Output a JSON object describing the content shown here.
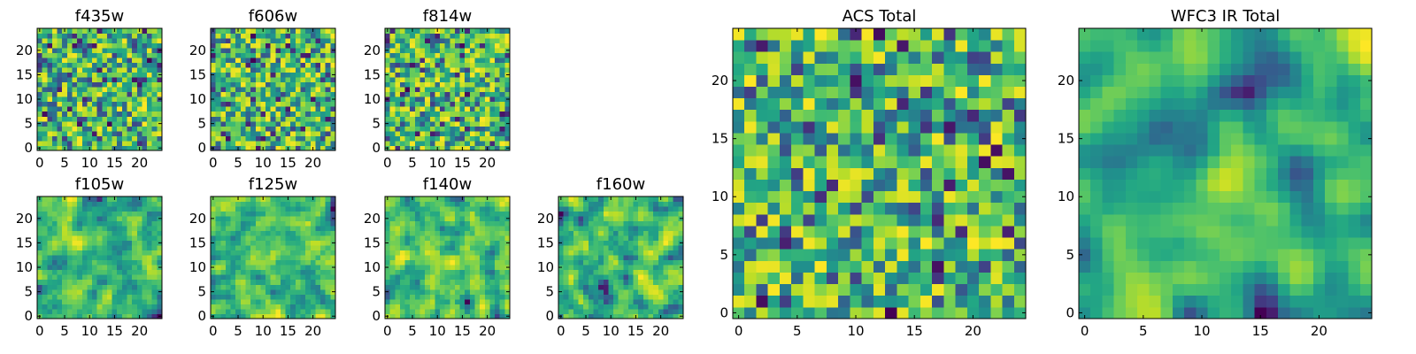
{
  "figure": {
    "description_type": "grid of heatmap panels (images) of 24x24 pixel cutouts",
    "colormap": "viridis"
  },
  "chart_data": [
    {
      "type": "heatmap",
      "title": "f435w",
      "x_ticks": [
        "0",
        "5",
        "10",
        "15",
        "20"
      ],
      "y_ticks": [
        "0",
        "5",
        "10",
        "15",
        "20"
      ],
      "xlim": [
        -0.5,
        24.5
      ],
      "ylim": [
        -0.5,
        24.5
      ],
      "grid_size": 25,
      "seed": 11,
      "smoothness": 0
    },
    {
      "type": "heatmap",
      "title": "f606w",
      "x_ticks": [
        "0",
        "5",
        "10",
        "15",
        "20"
      ],
      "y_ticks": [
        "0",
        "5",
        "10",
        "15",
        "20"
      ],
      "xlim": [
        -0.5,
        24.5
      ],
      "ylim": [
        -0.5,
        24.5
      ],
      "grid_size": 25,
      "seed": 23,
      "smoothness": 0
    },
    {
      "type": "heatmap",
      "title": "f814w",
      "x_ticks": [
        "0",
        "5",
        "10",
        "15",
        "20"
      ],
      "y_ticks": [
        "0",
        "5",
        "10",
        "15",
        "20"
      ],
      "xlim": [
        -0.5,
        24.5
      ],
      "ylim": [
        -0.5,
        24.5
      ],
      "grid_size": 25,
      "seed": 37,
      "smoothness": 0
    },
    {
      "type": "heatmap",
      "title": "f105w",
      "x_ticks": [
        "0",
        "5",
        "10",
        "15",
        "20"
      ],
      "y_ticks": [
        "0",
        "5",
        "10",
        "15",
        "20"
      ],
      "xlim": [
        -0.5,
        24.5
      ],
      "ylim": [
        -0.5,
        24.5
      ],
      "grid_size": 25,
      "seed": 41,
      "smoothness": 1
    },
    {
      "type": "heatmap",
      "title": "f125w",
      "x_ticks": [
        "0",
        "5",
        "10",
        "15",
        "20"
      ],
      "y_ticks": [
        "0",
        "5",
        "10",
        "15",
        "20"
      ],
      "xlim": [
        -0.5,
        24.5
      ],
      "ylim": [
        -0.5,
        24.5
      ],
      "grid_size": 25,
      "seed": 53,
      "smoothness": 1
    },
    {
      "type": "heatmap",
      "title": "f140w",
      "x_ticks": [
        "0",
        "5",
        "10",
        "15",
        "20"
      ],
      "y_ticks": [
        "0",
        "5",
        "10",
        "15",
        "20"
      ],
      "xlim": [
        -0.5,
        24.5
      ],
      "ylim": [
        -0.5,
        24.5
      ],
      "grid_size": 25,
      "seed": 67,
      "smoothness": 1
    },
    {
      "type": "heatmap",
      "title": "f160w",
      "x_ticks": [
        "0",
        "5",
        "10",
        "15",
        "20"
      ],
      "y_ticks": [
        "0",
        "5",
        "10",
        "15",
        "20"
      ],
      "xlim": [
        -0.5,
        24.5
      ],
      "ylim": [
        -0.5,
        24.5
      ],
      "grid_size": 25,
      "seed": 79,
      "smoothness": 1
    },
    {
      "type": "heatmap",
      "title": "ACS Total",
      "x_ticks": [
        "0",
        "5",
        "10",
        "15",
        "20"
      ],
      "y_ticks": [
        "0",
        "5",
        "10",
        "15",
        "20"
      ],
      "xlim": [
        -0.5,
        24.5
      ],
      "ylim": [
        -0.5,
        24.5
      ],
      "grid_size": 25,
      "seed": 97,
      "smoothness": 0
    },
    {
      "type": "heatmap",
      "title": "WFC3 IR Total",
      "x_ticks": [
        "0",
        "5",
        "10",
        "15",
        "20"
      ],
      "y_ticks": [
        "0",
        "5",
        "10",
        "15",
        "20"
      ],
      "xlim": [
        -0.5,
        24.5
      ],
      "ylim": [
        -0.5,
        24.5
      ],
      "grid_size": 25,
      "seed": 101,
      "smoothness": 2
    }
  ]
}
